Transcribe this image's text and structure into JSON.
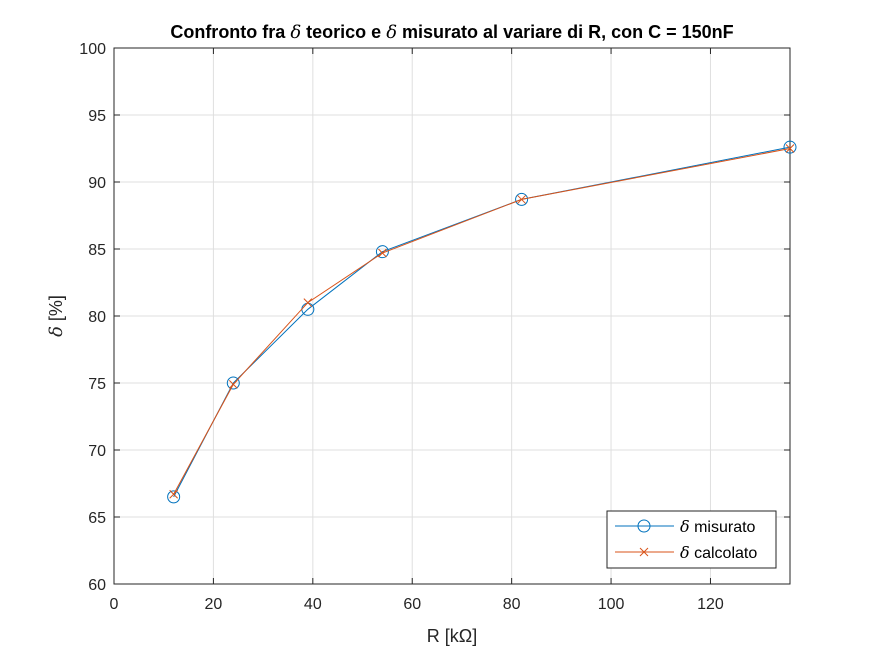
{
  "chart_data": {
    "type": "line",
    "title_parts": [
      "Confronto fra ",
      "δ",
      " teorico e ",
      "δ",
      " misurato al variare di R, con C = 150nF"
    ],
    "xlabel": "R [kΩ]",
    "ylabel_parts": [
      "δ",
      " [%]"
    ],
    "xlim": [
      0,
      136
    ],
    "ylim": [
      60,
      100
    ],
    "xticks": [
      0,
      20,
      40,
      60,
      80,
      100,
      120
    ],
    "yticks": [
      60,
      65,
      70,
      75,
      80,
      85,
      90,
      95,
      100
    ],
    "grid": true,
    "legend_position": "bottom-right",
    "x": [
      12,
      24,
      39,
      54,
      82,
      136
    ],
    "series": [
      {
        "name_parts": [
          "δ",
          " misurato"
        ],
        "marker": "circle",
        "color": "#0072BD",
        "values": [
          66.5,
          75.0,
          80.5,
          84.8,
          88.7,
          92.6
        ]
      },
      {
        "name_parts": [
          "δ",
          " calcolato"
        ],
        "marker": "x",
        "color": "#D95319",
        "values": [
          66.7,
          74.9,
          81.0,
          84.7,
          88.7,
          92.5
        ]
      }
    ]
  }
}
